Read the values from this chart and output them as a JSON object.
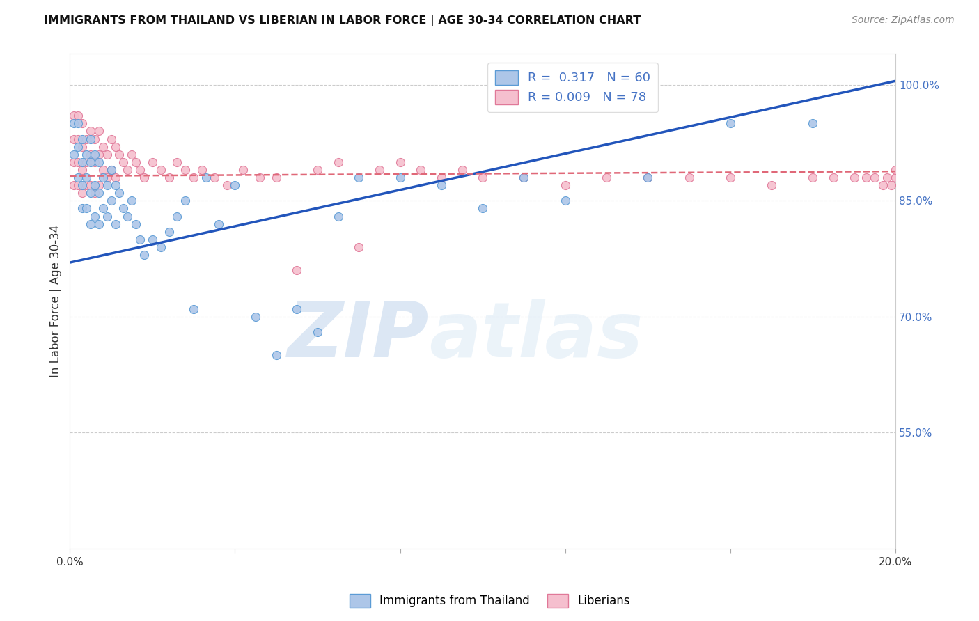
{
  "title": "IMMIGRANTS FROM THAILAND VS LIBERIAN IN LABOR FORCE | AGE 30-34 CORRELATION CHART",
  "source_text": "Source: ZipAtlas.com",
  "ylabel": "In Labor Force | Age 30-34",
  "xlim": [
    0.0,
    0.2
  ],
  "ylim": [
    0.4,
    1.04
  ],
  "xticks": [
    0.0,
    0.04,
    0.08,
    0.12,
    0.16,
    0.2
  ],
  "xticklabels": [
    "0.0%",
    "",
    "",
    "",
    "",
    "20.0%"
  ],
  "yticks_right": [
    0.55,
    0.7,
    0.85,
    1.0
  ],
  "yticks_right_labels": [
    "55.0%",
    "70.0%",
    "85.0%",
    "100.0%"
  ],
  "thailand_color": "#adc6e8",
  "thailand_edge_color": "#5b9bd5",
  "liberian_color": "#f5bfce",
  "liberian_edge_color": "#e07898",
  "trend_thailand_color": "#2255bb",
  "trend_liberian_color": "#e06878",
  "R_thailand": 0.317,
  "N_thailand": 60,
  "R_liberian": 0.009,
  "N_liberian": 78,
  "grid_color": "#cccccc",
  "background_color": "#ffffff",
  "thailand_trend_x0": 0.0,
  "thailand_trend_y0": 0.77,
  "thailand_trend_x1": 0.2,
  "thailand_trend_y1": 1.005,
  "liberian_trend_x0": 0.0,
  "liberian_trend_y0": 0.882,
  "liberian_trend_x1": 0.2,
  "liberian_trend_y1": 0.888,
  "thailand_points_x": [
    0.001,
    0.001,
    0.002,
    0.002,
    0.002,
    0.003,
    0.003,
    0.003,
    0.003,
    0.004,
    0.004,
    0.004,
    0.005,
    0.005,
    0.005,
    0.005,
    0.006,
    0.006,
    0.006,
    0.007,
    0.007,
    0.007,
    0.008,
    0.008,
    0.009,
    0.009,
    0.01,
    0.01,
    0.011,
    0.011,
    0.012,
    0.013,
    0.014,
    0.015,
    0.016,
    0.017,
    0.018,
    0.02,
    0.022,
    0.024,
    0.026,
    0.028,
    0.03,
    0.033,
    0.036,
    0.04,
    0.045,
    0.05,
    0.055,
    0.06,
    0.065,
    0.07,
    0.08,
    0.09,
    0.1,
    0.11,
    0.12,
    0.14,
    0.16,
    0.18
  ],
  "thailand_points_y": [
    0.95,
    0.91,
    0.95,
    0.92,
    0.88,
    0.93,
    0.9,
    0.87,
    0.84,
    0.91,
    0.88,
    0.84,
    0.93,
    0.9,
    0.86,
    0.82,
    0.91,
    0.87,
    0.83,
    0.9,
    0.86,
    0.82,
    0.88,
    0.84,
    0.87,
    0.83,
    0.89,
    0.85,
    0.87,
    0.82,
    0.86,
    0.84,
    0.83,
    0.85,
    0.82,
    0.8,
    0.78,
    0.8,
    0.79,
    0.81,
    0.83,
    0.85,
    0.71,
    0.88,
    0.82,
    0.87,
    0.7,
    0.65,
    0.71,
    0.68,
    0.83,
    0.88,
    0.88,
    0.87,
    0.84,
    0.88,
    0.85,
    0.88,
    0.95,
    0.95
  ],
  "liberian_points_x": [
    0.001,
    0.001,
    0.001,
    0.001,
    0.002,
    0.002,
    0.002,
    0.002,
    0.003,
    0.003,
    0.003,
    0.003,
    0.004,
    0.004,
    0.004,
    0.005,
    0.005,
    0.005,
    0.006,
    0.006,
    0.006,
    0.007,
    0.007,
    0.007,
    0.008,
    0.008,
    0.009,
    0.009,
    0.01,
    0.01,
    0.011,
    0.011,
    0.012,
    0.013,
    0.014,
    0.015,
    0.016,
    0.017,
    0.018,
    0.02,
    0.022,
    0.024,
    0.026,
    0.028,
    0.03,
    0.032,
    0.035,
    0.038,
    0.042,
    0.046,
    0.05,
    0.055,
    0.06,
    0.065,
    0.07,
    0.075,
    0.08,
    0.085,
    0.09,
    0.095,
    0.1,
    0.11,
    0.12,
    0.13,
    0.14,
    0.15,
    0.16,
    0.17,
    0.18,
    0.185,
    0.19,
    0.193,
    0.195,
    0.197,
    0.198,
    0.199,
    0.2,
    0.2
  ],
  "liberian_points_y": [
    0.96,
    0.93,
    0.9,
    0.87,
    0.96,
    0.93,
    0.9,
    0.87,
    0.95,
    0.92,
    0.89,
    0.86,
    0.93,
    0.9,
    0.87,
    0.94,
    0.91,
    0.87,
    0.93,
    0.9,
    0.86,
    0.94,
    0.91,
    0.87,
    0.92,
    0.89,
    0.91,
    0.88,
    0.93,
    0.89,
    0.92,
    0.88,
    0.91,
    0.9,
    0.89,
    0.91,
    0.9,
    0.89,
    0.88,
    0.9,
    0.89,
    0.88,
    0.9,
    0.89,
    0.88,
    0.89,
    0.88,
    0.87,
    0.89,
    0.88,
    0.88,
    0.76,
    0.89,
    0.9,
    0.79,
    0.89,
    0.9,
    0.89,
    0.88,
    0.89,
    0.88,
    0.88,
    0.87,
    0.88,
    0.88,
    0.88,
    0.88,
    0.87,
    0.88,
    0.88,
    0.88,
    0.88,
    0.88,
    0.87,
    0.88,
    0.87,
    0.88,
    0.89
  ],
  "watermark_zip": "ZIP",
  "watermark_atlas": "atlas",
  "marker_size": 75
}
